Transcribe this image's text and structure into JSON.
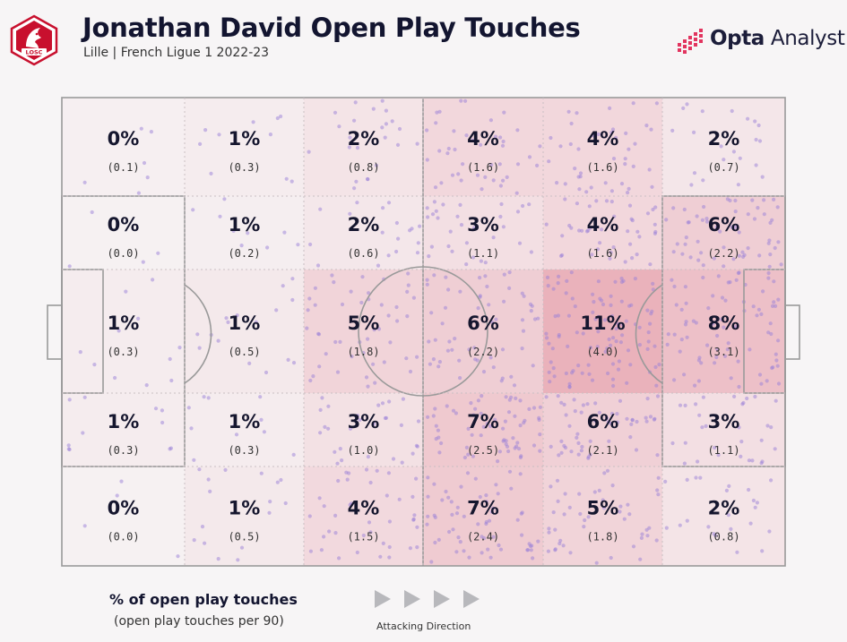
{
  "header": {
    "title": "Jonathan David Open Play Touches",
    "subtitle": "Lille | French Ligue 1 2022-23",
    "club_badge_text": "LOSC",
    "brand_bold": "Opta",
    "brand_light": "Analyst"
  },
  "legend": {
    "main": "% of open play touches",
    "sub": "(open play touches per 90)",
    "direction": "Attacking Direction"
  },
  "colors": {
    "heat": "#e07a8a",
    "dot": "#9a7fd8",
    "pitch_line": "#9a9a9a",
    "badge": "#c8102e",
    "brand_dots": "#e2345f"
  },
  "chart_data": {
    "type": "heatmap",
    "title": "Jonathan David Open Play Touches",
    "subtitle": "Lille | French Ligue 1 2022-23",
    "attacking_direction": "left-to-right",
    "rows": [
      {
        "zone": "wide-top",
        "cells": [
          {
            "pct": "0%",
            "per90": "(0.1)",
            "value": 0.1
          },
          {
            "pct": "1%",
            "per90": "(0.3)",
            "value": 0.3
          },
          {
            "pct": "2%",
            "per90": "(0.8)",
            "value": 0.8
          },
          {
            "pct": "4%",
            "per90": "(1.6)",
            "value": 1.6
          },
          {
            "pct": "4%",
            "per90": "(1.6)",
            "value": 1.6
          },
          {
            "pct": "2%",
            "per90": "(0.7)",
            "value": 0.7
          }
        ]
      },
      {
        "zone": "half-space-top",
        "cells": [
          {
            "pct": "0%",
            "per90": "(0.0)",
            "value": 0.0
          },
          {
            "pct": "1%",
            "per90": "(0.2)",
            "value": 0.2
          },
          {
            "pct": "2%",
            "per90": "(0.6)",
            "value": 0.6
          },
          {
            "pct": "3%",
            "per90": "(1.1)",
            "value": 1.1
          },
          {
            "pct": "4%",
            "per90": "(1.6)",
            "value": 1.6
          },
          {
            "pct": "6%",
            "per90": "(2.2)",
            "value": 2.2
          }
        ]
      },
      {
        "zone": "central",
        "cells": [
          {
            "pct": "1%",
            "per90": "(0.3)",
            "value": 0.3
          },
          {
            "pct": "1%",
            "per90": "(0.5)",
            "value": 0.5
          },
          {
            "pct": "5%",
            "per90": "(1.8)",
            "value": 1.8
          },
          {
            "pct": "6%",
            "per90": "(2.2)",
            "value": 2.2
          },
          {
            "pct": "11%",
            "per90": "(4.0)",
            "value": 4.0
          },
          {
            "pct": "8%",
            "per90": "(3.1)",
            "value": 3.1
          }
        ]
      },
      {
        "zone": "half-space-bottom",
        "cells": [
          {
            "pct": "1%",
            "per90": "(0.3)",
            "value": 0.3
          },
          {
            "pct": "1%",
            "per90": "(0.3)",
            "value": 0.3
          },
          {
            "pct": "3%",
            "per90": "(1.0)",
            "value": 1.0
          },
          {
            "pct": "7%",
            "per90": "(2.5)",
            "value": 2.5
          },
          {
            "pct": "6%",
            "per90": "(2.1)",
            "value": 2.1
          },
          {
            "pct": "3%",
            "per90": "(1.1)",
            "value": 1.1
          }
        ]
      },
      {
        "zone": "wide-bottom",
        "cells": [
          {
            "pct": "0%",
            "per90": "(0.0)",
            "value": 0.0
          },
          {
            "pct": "1%",
            "per90": "(0.5)",
            "value": 0.5
          },
          {
            "pct": "4%",
            "per90": "(1.5)",
            "value": 1.5
          },
          {
            "pct": "7%",
            "per90": "(2.4)",
            "value": 2.4
          },
          {
            "pct": "5%",
            "per90": "(1.8)",
            "value": 1.8
          },
          {
            "pct": "2%",
            "per90": "(0.8)",
            "value": 0.8
          }
        ]
      }
    ],
    "value_max": 4.0,
    "legend": [
      "% of open play touches",
      "(open play touches per 90)"
    ]
  }
}
